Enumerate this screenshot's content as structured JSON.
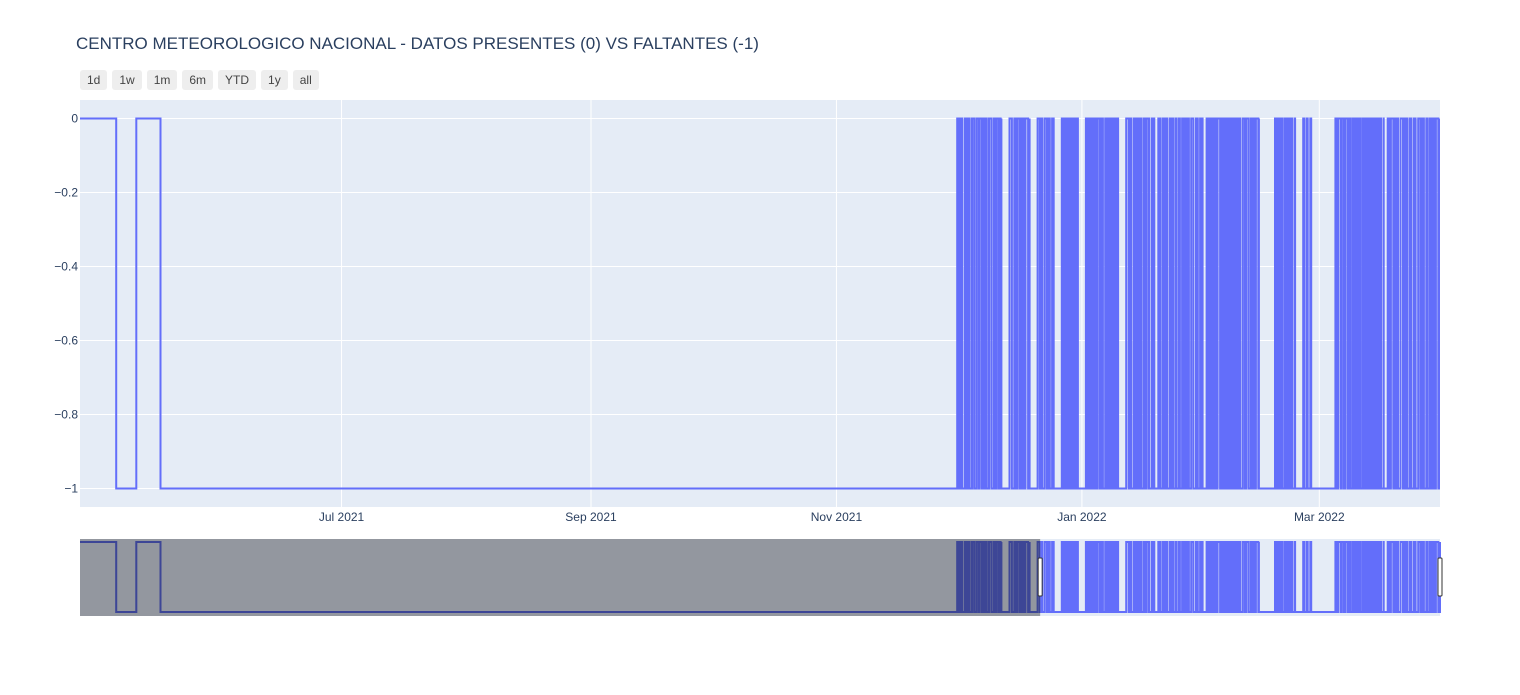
{
  "title": "CENTRO METEOROLOGICO NACIONAL - DATOS PRESENTES (0) VS FALTANTES (-1)",
  "range_buttons": [
    "1d",
    "1w",
    "1m",
    "6m",
    "YTD",
    "1y",
    "all"
  ],
  "colors": {
    "line": "#636efa",
    "plot_bg": "#e5ecf6",
    "grid": "#ffffff",
    "text": "#2a3f5f",
    "mask": "#8a8e96"
  },
  "chart_data": {
    "type": "line",
    "line_shape": "step",
    "title": "CENTRO METEOROLOGICO NACIONAL - DATOS PRESENTES (0) VS FALTANTES (-1)",
    "xlabel": "",
    "ylabel": "",
    "xlim": [
      "2021-04-27",
      "2022-03-31"
    ],
    "ylim": [
      -1.05,
      0.05
    ],
    "x_ticks": [
      "Jul 2021",
      "Sep 2021",
      "Nov 2021",
      "Jan 2022",
      "Mar 2022"
    ],
    "x_tick_dates": [
      "2021-07-01",
      "2021-09-01",
      "2021-11-01",
      "2022-01-01",
      "2022-03-01"
    ],
    "y_ticks": [
      0,
      -0.2,
      -0.4,
      -0.6,
      -0.8,
      -1
    ],
    "y_tick_labels": [
      "0",
      "−0.2",
      "−0.4",
      "−0.6",
      "−0.8",
      "−1"
    ],
    "grid": true,
    "legend": "none",
    "series": [
      {
        "x": [
          "2021-04-27",
          "2021-05-06",
          "2021-05-11",
          "2021-05-17",
          "2021-12-01",
          "2022-03-31"
        ],
        "y": [
          0,
          -1,
          0,
          -1,
          -1,
          -1
        ]
      }
    ],
    "dense_toggle_periods": [
      [
        "2021-12-01",
        "2021-12-12"
      ],
      [
        "2021-12-14",
        "2021-12-19"
      ],
      [
        "2021-12-21",
        "2021-12-25"
      ],
      [
        "2021-12-27",
        "2021-12-31"
      ],
      [
        "2022-01-02",
        "2022-01-10"
      ],
      [
        "2022-01-12",
        "2022-01-19"
      ],
      [
        "2022-01-20",
        "2022-01-31"
      ],
      [
        "2022-02-01",
        "2022-02-14"
      ],
      [
        "2022-02-18",
        "2022-02-23"
      ],
      [
        "2022-02-25",
        "2022-02-27"
      ],
      [
        "2022-03-05",
        "2022-03-17"
      ],
      [
        "2022-03-18",
        "2022-03-31"
      ]
    ],
    "rangeslider": {
      "visible": true,
      "selected_range": [
        "2021-04-27",
        "2022-03-31"
      ]
    }
  }
}
